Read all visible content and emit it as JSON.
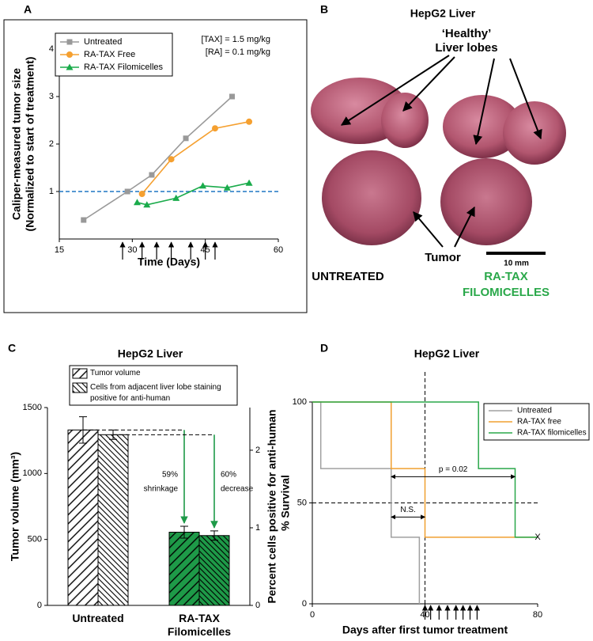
{
  "chart_data": [
    {
      "type": "line",
      "label": "A",
      "ylabel": [
        "Caliper-measured tumor size",
        "(Normalized to start of treatment)"
      ],
      "xlabel": "Time (Days)",
      "xlim": [
        15,
        60
      ],
      "xticks": [
        15,
        30,
        45,
        60
      ],
      "ylim": [
        0,
        4
      ],
      "yticks": [
        1,
        2,
        3,
        4
      ],
      "legend": "upper left",
      "hline": 1,
      "hline_color": "#1f77c4",
      "treatment_days": [
        28,
        32,
        35,
        38,
        42,
        45,
        47
      ],
      "annotations": [
        "[TAX] = 1.5 mg/kg",
        "[RA] = 0.1 mg/kg"
      ],
      "series": [
        {
          "name": "Untreated",
          "color": "#999999",
          "marker": "square",
          "x": [
            20,
            29,
            34,
            41,
            50.5
          ],
          "values": [
            0.4,
            1.0,
            1.35,
            2.12,
            3.0
          ]
        },
        {
          "name": "RA-TAX Free",
          "color": "#f5a030",
          "marker": "circle",
          "x": [
            32,
            38,
            47,
            54
          ],
          "values": [
            0.95,
            1.68,
            2.33,
            2.47
          ]
        },
        {
          "name": "RA-TAX Filomicelles",
          "color": "#1aab4b",
          "marker": "triangle",
          "x": [
            31,
            33,
            39,
            44.5,
            49.5,
            54
          ],
          "values": [
            0.77,
            0.72,
            0.86,
            1.12,
            1.08,
            1.18
          ]
        }
      ]
    },
    {
      "type": "bar",
      "label": "C",
      "title": "HepG2 Liver",
      "categories": [
        "Untreated",
        "RA-TAX Filomicelles"
      ],
      "category_colors": [
        "#ffffff",
        "#1e9a48"
      ],
      "ylabel": "Tumor volume (mm³)",
      "y2label": "Percent cells positive for anti-human",
      "ylim": [
        0,
        1500
      ],
      "yticks": [
        0,
        500,
        1000,
        1500
      ],
      "y2lim": [
        0,
        2.55
      ],
      "y2ticks": [
        0,
        1,
        2
      ],
      "legend": "upper center",
      "series": [
        {
          "name": "Tumor volume",
          "hatch": "wide",
          "values": [
            1330,
            555
          ],
          "errors": [
            100,
            45
          ]
        },
        {
          "name": "Cells from adjacent liver lobe staining positive for anti-human",
          "axis": "y2",
          "hatch": "dense",
          "values": [
            2.2,
            0.9
          ],
          "errors": [
            0.06,
            0.06
          ]
        }
      ],
      "annotations": [
        [
          "59%",
          "shrinkage"
        ],
        [
          "60%",
          "decrease"
        ]
      ]
    },
    {
      "type": "step",
      "label": "D",
      "title": "HepG2 Liver",
      "xlabel": "Days after first tumor treatment",
      "ylabel": "% Survival",
      "xlim": [
        0,
        80
      ],
      "xticks": [
        0,
        40,
        80
      ],
      "ylim": [
        0,
        100
      ],
      "yticks": [
        0,
        50,
        100
      ],
      "vline": 40,
      "hline": 50,
      "legend": "upper right",
      "treatment_days": [
        40,
        42,
        45,
        48,
        51,
        53.5,
        56,
        58.5
      ],
      "series": [
        {
          "name": "Untreated",
          "color": "#a0a0a0",
          "x": [
            0,
            3,
            28,
            38
          ],
          "values": [
            100,
            67,
            33,
            0
          ]
        },
        {
          "name": "RA-TAX free",
          "color": "#f0a030",
          "x": [
            0,
            28,
            40,
            80
          ],
          "values": [
            100,
            67,
            33,
            33
          ]
        },
        {
          "name": "RA-TAX filomicelles",
          "color": "#2aa84a",
          "x": [
            0,
            59,
            72,
            80
          ],
          "values": [
            100,
            67,
            33,
            33
          ]
        }
      ],
      "brackets": [
        {
          "label": "p = 0.02",
          "from": 28,
          "to": 72,
          "at": 63
        },
        {
          "label": "N.S.",
          "from": 28,
          "to": 40,
          "at": 43
        }
      ],
      "end_mark": {
        "label": "X",
        "x": 80,
        "y": 33
      }
    }
  ],
  "panel_b": {
    "label": "B",
    "title": "HepG2 Liver",
    "healthy": [
      "‘Healthy’",
      "Liver lobes"
    ],
    "tumor": "Tumor",
    "scale_bar": "10 mm",
    "untreated": "UNTREATED",
    "treated": "RA-TAX FILOMICELLES"
  }
}
